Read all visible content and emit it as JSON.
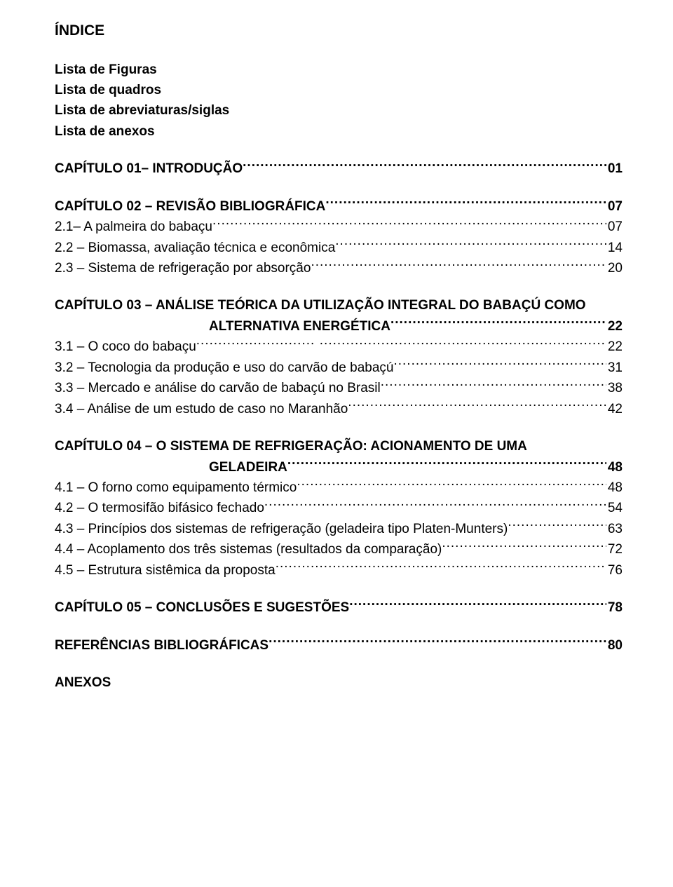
{
  "title": "ÍNDICE",
  "prelim": [
    "Lista de Figuras",
    "Lista de quadros",
    "Lista de abreviaturas/siglas",
    "Lista de anexos"
  ],
  "chapters": [
    {
      "head": {
        "label": "CAPÍTULO 01– INTRODUÇÃO",
        "page": "01",
        "bold": true
      },
      "items": []
    },
    {
      "head": {
        "label": "CAPÍTULO 02 – REVISÃO BIBLIOGRÁFICA",
        "page": "07",
        "bold": true
      },
      "items": [
        {
          "label": "2.1– A palmeira do babaçu",
          "page": "07"
        },
        {
          "label": "2.2 – Biomassa, avaliação técnica e econômica",
          "page": "14"
        },
        {
          "label": "2.3 – Sistema de refrigeração por absorção",
          "page": "20"
        }
      ]
    },
    {
      "head": {
        "label": "CAPÍTULO 03 – ANÁLISE TEÓRICA DA UTILIZAÇÃO INTEGRAL DO BABAÇÚ COMO",
        "page": "",
        "bold": true,
        "nodots": true
      },
      "continuation": {
        "label": "ALTERNATIVA ENERGÉTICA",
        "page": "22"
      },
      "items": [
        {
          "label": "3.1 – O coco do babaçu",
          "page": "22",
          "double_dots": true
        },
        {
          "label": "3.2 – Tecnologia da produção e uso do carvão de babaçú",
          "page": "31"
        },
        {
          "label": "3.3 – Mercado e análise do carvão de babaçú no Brasil",
          "page": "38"
        },
        {
          "label": "3.4 – Análise de um estudo de caso no Maranhão",
          "page": "42"
        }
      ]
    },
    {
      "head": {
        "label": "CAPÍTULO 04 – O SISTEMA DE REFRIGERAÇÃO: ACIONAMENTO DE UMA",
        "page": "",
        "bold": true,
        "nodots": true
      },
      "continuation": {
        "label": "GELADEIRA",
        "page": "48"
      },
      "items": [
        {
          "label": "4.1 – O forno  como equipamento térmico",
          "page": "48"
        },
        {
          "label": "4.2 – O termosifão bifásico fechado",
          "page": "54"
        },
        {
          "label": "4.3 – Princípios dos sistemas de refrigeração (geladeira tipo Platen-Munters)",
          "page": "63"
        },
        {
          "label": "4.4 – Acoplamento dos três sistemas (resultados da comparação)",
          "page": "72"
        },
        {
          "label": "4.5 – Estrutura sistêmica da proposta",
          "page": "76"
        }
      ]
    },
    {
      "head": {
        "label": "CAPÍTULO 05 – CONCLUSÕES E SUGESTÕES",
        "page": "78",
        "bold": true
      },
      "items": []
    },
    {
      "head": {
        "label": "REFERÊNCIAS BIBLIOGRÁFICAS",
        "page": "80",
        "bold": true
      },
      "items": []
    }
  ],
  "final": "ANEXOS"
}
